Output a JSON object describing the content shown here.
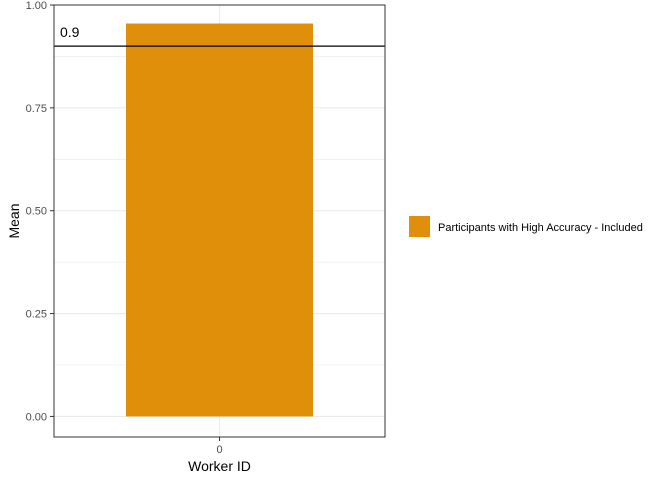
{
  "chart_data": {
    "type": "bar",
    "categories": [
      "0"
    ],
    "series": [
      {
        "name": "Participants with High Accuracy - Included",
        "values": [
          0.955
        ],
        "color": "#E08F0A"
      }
    ],
    "xlabel": "Worker ID",
    "ylabel": "Mean",
    "ylim": [
      -0.05,
      1.0
    ],
    "yticks": [
      0.0,
      0.25,
      0.5,
      0.75,
      1.0
    ],
    "ytick_labels": [
      "0.00",
      "0.25",
      "0.50",
      "0.75",
      "1.00"
    ],
    "reference_line": {
      "value": 0.9,
      "label": "0.9",
      "color": "#000000"
    },
    "grid": true,
    "legend_position": "right"
  }
}
